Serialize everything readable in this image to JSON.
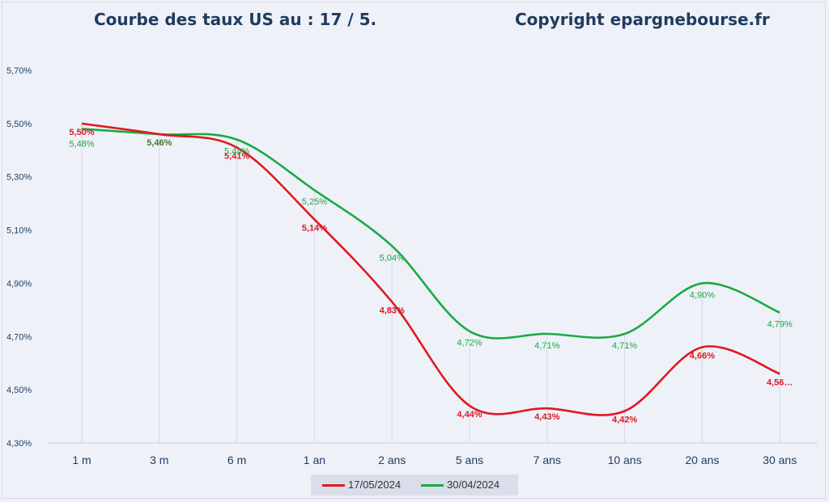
{
  "title": "Courbe des taux US au : 17 / 5.",
  "copyright": "Copyright epargnebourse.fr",
  "chart_data": {
    "type": "line",
    "categories": [
      "1 m",
      "3 m",
      "6 m",
      "1 an",
      "2 ans",
      "5 ans",
      "7 ans",
      "10 ans",
      "20 ans",
      "30 ans"
    ],
    "ylim": [
      4.3,
      5.7
    ],
    "y_ticks": [
      "5,70%",
      "5,50%",
      "5,30%",
      "5,10%",
      "4,90%",
      "4,70%",
      "4,50%",
      "4,30%"
    ],
    "grid": "vertical drop lines",
    "legend_position": "bottom",
    "series": [
      {
        "name": "17/05/2024",
        "color": "#e0191f",
        "values": [
          5.5,
          5.46,
          5.41,
          5.14,
          4.83,
          4.44,
          4.43,
          4.42,
          4.66,
          4.56
        ],
        "labels": [
          "5,50%",
          "5,46%",
          "5,41%",
          "5,14%",
          "4,83%",
          "4,44%",
          "4,43%",
          "4,42%",
          "4,66%",
          "4,56…"
        ]
      },
      {
        "name": "30/04/2024",
        "color": "#1aaa44",
        "values": [
          5.48,
          5.46,
          5.44,
          5.25,
          5.04,
          4.72,
          4.71,
          4.71,
          4.9,
          4.79
        ],
        "labels": [
          "5,48%",
          "5,46%",
          "5,44%",
          "5,25%",
          "5,04%",
          "4,72%",
          "4,71%",
          "4,71%",
          "4,90%",
          "4,79%"
        ]
      }
    ]
  }
}
